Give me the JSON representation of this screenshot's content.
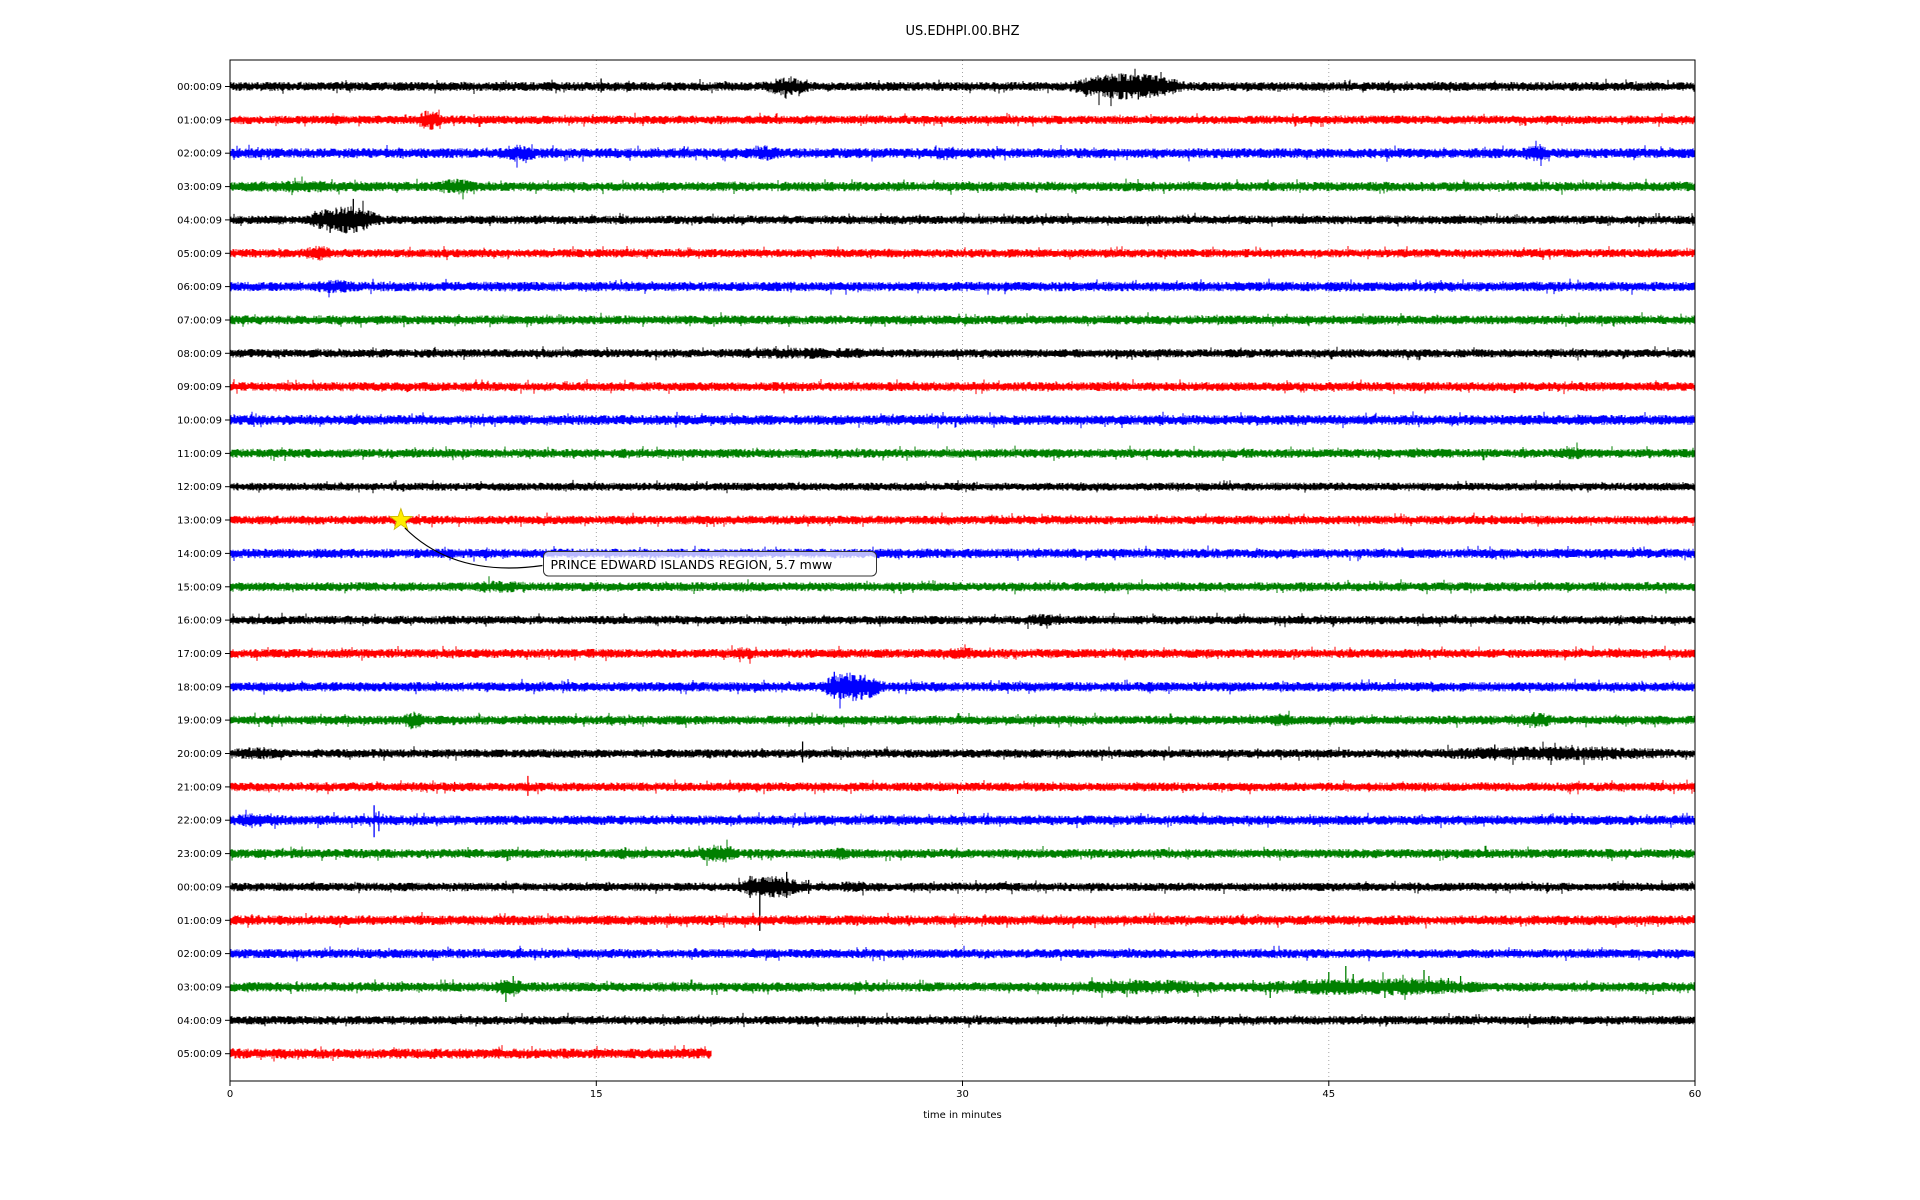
{
  "title": "US.EDHPI.00.BHZ",
  "axes": {
    "xlabel": "time in minutes",
    "x_ticks": [
      {
        "label": "0",
        "value": 0
      },
      {
        "label": "15",
        "value": 15
      },
      {
        "label": "30",
        "value": 30
      },
      {
        "label": "45",
        "value": 45
      },
      {
        "label": "60",
        "value": 60
      }
    ],
    "grid_minutes": [
      15,
      30,
      45
    ],
    "xlim": [
      0,
      60
    ],
    "grid_on": true
  },
  "colors": {
    "background": "#ffffff",
    "grid": "#9a9a9a",
    "spine": "#000000",
    "star_fill": "#ffed00",
    "star_edge": "#c8b400",
    "annotation_border": "#333333",
    "annotation_fill": "#ffffff"
  },
  "annotation": {
    "label": "PRINCE EDWARD ISLANDS REGION, 5.7 mww",
    "marker": "star-icon",
    "row_index": 13,
    "minute": 7.0
  },
  "chart_data": {
    "type": "line",
    "subtype": "helicorder-dayplot",
    "title": "US.EDHPI.00.BHZ",
    "xlabel": "time in minutes",
    "xlim": [
      0,
      60
    ],
    "minutes_per_row": 60,
    "color_cycle": [
      "#000000",
      "#ff0000",
      "#0000ff",
      "#008000"
    ],
    "event": {
      "text": "PRINCE EDWARD ISLANDS REGION, 5.7 mww",
      "row_label": "13:00:09",
      "minute": 7.0
    },
    "rows": [
      {
        "label": "00:00:09",
        "color": "#000000",
        "start_minute": 0,
        "end_minute": 60,
        "noise_amp": 3.8,
        "bursts": [
          [
            21.8,
            23.8,
            1.0
          ],
          [
            34.3,
            39.2,
            2.0
          ]
        ],
        "spikes": [
          [
            15.2,
            8,
            6
          ],
          [
            22.5,
            7,
            6
          ],
          [
            36.5,
            13,
            11
          ],
          [
            37.2,
            11,
            13
          ]
        ]
      },
      {
        "label": "01:00:09",
        "color": "#ff0000",
        "start_minute": 0,
        "end_minute": 60,
        "noise_amp": 3.6,
        "bursts": [
          [
            7.6,
            8.7,
            1.4
          ]
        ],
        "spikes": [
          [
            8.2,
            6,
            6
          ]
        ]
      },
      {
        "label": "02:00:09",
        "color": "#0000ff",
        "start_minute": 0,
        "end_minute": 60,
        "noise_amp": 4.2,
        "bursts": [
          [
            11.0,
            12.6,
            0.7
          ],
          [
            21.4,
            22.6,
            0.6
          ],
          [
            28.8,
            29.9,
            0.5
          ],
          [
            52.9,
            54.1,
            0.6
          ]
        ],
        "spikes": [
          [
            18.6,
            7,
            5
          ]
        ]
      },
      {
        "label": "03:00:09",
        "color": "#008000",
        "start_minute": 0,
        "end_minute": 60,
        "noise_amp": 4.0,
        "bursts": [
          [
            0.3,
            5.5,
            0.25
          ],
          [
            8.4,
            10.1,
            0.7
          ]
        ],
        "spikes": [
          [
            9.0,
            7,
            6
          ]
        ]
      },
      {
        "label": "04:00:09",
        "color": "#000000",
        "start_minute": 0,
        "end_minute": 60,
        "noise_amp": 3.6,
        "bursts": [
          [
            3.1,
            6.3,
            2.2
          ]
        ],
        "spikes": [
          [
            3.7,
            8,
            9
          ],
          [
            4.1,
            9,
            13
          ],
          [
            4.5,
            8,
            11
          ],
          [
            5.05,
            21,
            9
          ],
          [
            5.6,
            7,
            8
          ]
        ]
      },
      {
        "label": "05:00:09",
        "color": "#ff0000",
        "start_minute": 0,
        "end_minute": 60,
        "noise_amp": 3.6,
        "bursts": [
          [
            2.9,
            4.3,
            0.8
          ]
        ],
        "spikes": []
      },
      {
        "label": "06:00:09",
        "color": "#0000ff",
        "start_minute": 0,
        "end_minute": 60,
        "noise_amp": 4.0,
        "bursts": [
          [
            3.4,
            5.1,
            0.45
          ]
        ],
        "spikes": []
      },
      {
        "label": "07:00:09",
        "color": "#008000",
        "start_minute": 0,
        "end_minute": 60,
        "noise_amp": 3.8,
        "bursts": [],
        "spikes": []
      },
      {
        "label": "08:00:09",
        "color": "#000000",
        "start_minute": 0,
        "end_minute": 60,
        "noise_amp": 3.6,
        "bursts": [
          [
            19.8,
            27.2,
            0.3
          ]
        ],
        "spikes": []
      },
      {
        "label": "09:00:09",
        "color": "#ff0000",
        "start_minute": 0,
        "end_minute": 60,
        "noise_amp": 3.8,
        "bursts": [],
        "spikes": []
      },
      {
        "label": "10:00:09",
        "color": "#0000ff",
        "start_minute": 0,
        "end_minute": 60,
        "noise_amp": 4.2,
        "bursts": [],
        "spikes": []
      },
      {
        "label": "11:00:09",
        "color": "#008000",
        "start_minute": 0,
        "end_minute": 60,
        "noise_amp": 3.8,
        "bursts": [
          [
            54.4,
            55.6,
            0.45
          ]
        ],
        "spikes": []
      },
      {
        "label": "12:00:09",
        "color": "#000000",
        "start_minute": 0,
        "end_minute": 60,
        "noise_amp": 3.4,
        "bursts": [],
        "spikes": []
      },
      {
        "label": "13:00:09",
        "color": "#ff0000",
        "start_minute": 0,
        "end_minute": 60,
        "noise_amp": 3.7,
        "bursts": [],
        "spikes": []
      },
      {
        "label": "14:00:09",
        "color": "#0000ff",
        "start_minute": 0,
        "end_minute": 60,
        "noise_amp": 4.0,
        "bursts": [],
        "spikes": []
      },
      {
        "label": "15:00:09",
        "color": "#008000",
        "start_minute": 0,
        "end_minute": 60,
        "noise_amp": 3.8,
        "bursts": [
          [
            9.8,
            12.2,
            0.4
          ]
        ],
        "spikes": []
      },
      {
        "label": "16:00:09",
        "color": "#000000",
        "start_minute": 0,
        "end_minute": 60,
        "noise_amp": 3.6,
        "bursts": [
          [
            32.4,
            34.1,
            0.45
          ]
        ],
        "spikes": []
      },
      {
        "label": "17:00:09",
        "color": "#ff0000",
        "start_minute": 0,
        "end_minute": 60,
        "noise_amp": 3.8,
        "bursts": [
          [
            20.4,
            21.6,
            0.5
          ],
          [
            29.4,
            30.6,
            0.45
          ]
        ],
        "spikes": []
      },
      {
        "label": "18:00:09",
        "color": "#0000ff",
        "start_minute": 0,
        "end_minute": 60,
        "noise_amp": 4.0,
        "bursts": [
          [
            24.1,
            26.9,
            2.0
          ]
        ],
        "spikes": [
          [
            24.75,
            15,
            12
          ],
          [
            25.3,
            10,
            9
          ],
          [
            26.0,
            8,
            8
          ]
        ]
      },
      {
        "label": "19:00:09",
        "color": "#008000",
        "start_minute": 0,
        "end_minute": 60,
        "noise_amp": 3.8,
        "bursts": [
          [
            7.0,
            8.1,
            0.9
          ],
          [
            42.4,
            43.6,
            0.5
          ],
          [
            52.9,
            54.2,
            0.8
          ]
        ],
        "spikes": [
          [
            53.4,
            8,
            4
          ]
        ]
      },
      {
        "label": "20:00:09",
        "color": "#000000",
        "start_minute": 0,
        "end_minute": 60,
        "noise_amp": 3.6,
        "bursts": [
          [
            0.0,
            2.1,
            0.45
          ],
          [
            48.8,
            59.2,
            0.7
          ]
        ],
        "spikes": [
          [
            23.45,
            12,
            9
          ],
          [
            42.1,
            5,
            5
          ],
          [
            51.8,
            9,
            7
          ],
          [
            56.2,
            7,
            7
          ]
        ]
      },
      {
        "label": "21:00:09",
        "color": "#ff0000",
        "start_minute": 0,
        "end_minute": 60,
        "noise_amp": 3.7,
        "bursts": [],
        "spikes": [
          [
            9.2,
            5,
            5
          ],
          [
            12.2,
            11,
            9
          ],
          [
            29.8,
            3,
            7
          ]
        ]
      },
      {
        "label": "22:00:09",
        "color": "#0000ff",
        "start_minute": 0,
        "end_minute": 60,
        "noise_amp": 4.0,
        "bursts": [
          [
            0.0,
            2.2,
            0.45
          ]
        ],
        "spikes": [
          [
            5.9,
            15,
            17
          ],
          [
            6.1,
            9,
            11
          ]
        ]
      },
      {
        "label": "23:00:09",
        "color": "#008000",
        "start_minute": 0,
        "end_minute": 60,
        "noise_amp": 3.9,
        "bursts": [
          [
            15.7,
            16.4,
            0.5
          ],
          [
            19.2,
            20.9,
            1.0
          ],
          [
            24.7,
            25.4,
            0.45
          ]
        ],
        "spikes": [
          [
            20.1,
            8,
            4
          ]
        ]
      },
      {
        "label": "00:00:09",
        "color": "#000000",
        "start_minute": 0,
        "end_minute": 60,
        "noise_amp": 3.6,
        "bursts": [
          [
            20.7,
            23.6,
            1.6
          ],
          [
            24.9,
            26.1,
            0.5
          ]
        ],
        "spikes": [
          [
            21.3,
            11,
            11
          ],
          [
            21.7,
            5,
            44
          ],
          [
            22.8,
            15,
            11
          ],
          [
            23.7,
            7,
            7
          ]
        ]
      },
      {
        "label": "01:00:09",
        "color": "#ff0000",
        "start_minute": 0,
        "end_minute": 60,
        "noise_amp": 4.1,
        "bursts": [],
        "spikes": []
      },
      {
        "label": "02:00:09",
        "color": "#0000ff",
        "start_minute": 0,
        "end_minute": 60,
        "noise_amp": 3.9,
        "bursts": [],
        "spikes": []
      },
      {
        "label": "03:00:09",
        "color": "#008000",
        "start_minute": 0,
        "end_minute": 60,
        "noise_amp": 4.0,
        "bursts": [
          [
            10.7,
            12.1,
            0.7
          ],
          [
            34.4,
            40.6,
            0.55
          ],
          [
            41.9,
            51.6,
            0.85
          ]
        ],
        "spikes": [
          [
            11.3,
            5,
            15
          ],
          [
            11.6,
            11,
            4
          ],
          [
            41.9,
            7,
            4
          ],
          [
            42.6,
            4,
            11
          ],
          [
            45.0,
            15,
            6
          ],
          [
            45.7,
            21,
            7
          ],
          [
            46.0,
            13,
            6
          ],
          [
            47.3,
            6,
            11
          ],
          [
            48.9,
            17,
            6
          ],
          [
            49.1,
            11,
            5
          ],
          [
            49.9,
            9,
            5
          ],
          [
            50.4,
            11,
            5
          ]
        ]
      },
      {
        "label": "04:00:09",
        "color": "#000000",
        "start_minute": 0,
        "end_minute": 60,
        "noise_amp": 3.7,
        "bursts": [],
        "spikes": []
      },
      {
        "label": "05:00:09",
        "color": "#ff0000",
        "start_minute": 0,
        "end_minute": 19.7,
        "noise_amp": 4.3,
        "bursts": [],
        "spikes": []
      }
    ]
  }
}
